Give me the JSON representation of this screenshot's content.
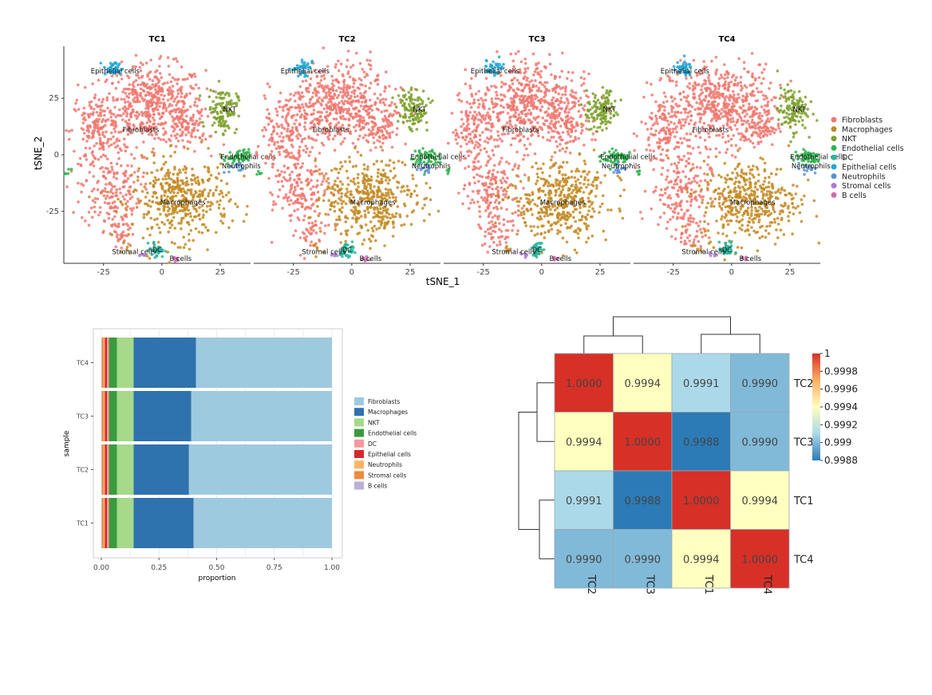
{
  "chart_data": [
    {
      "type": "scatter",
      "panels": [
        "TC1",
        "TC2",
        "TC3",
        "TC4"
      ],
      "xlabel": "tSNE_1",
      "ylabel": "tSNE_2",
      "xticks": [
        "-25",
        "0",
        "25"
      ],
      "yticks": [
        "25",
        "0",
        "-25"
      ],
      "xlim": [
        -42,
        38
      ],
      "ylim": [
        -48,
        48
      ],
      "legend_position": "right",
      "legend": [
        {
          "name": "Fibroblasts",
          "color": "#F07870"
        },
        {
          "name": "Macrophages",
          "color": "#C48A22"
        },
        {
          "name": "NKT",
          "color": "#7CA12D"
        },
        {
          "name": "Endothelial cells",
          "color": "#2DB34A"
        },
        {
          "name": "DC",
          "color": "#26B59A"
        },
        {
          "name": "Epithelial cells",
          "color": "#22A7D4"
        },
        {
          "name": "Neutrophils",
          "color": "#5A8FD0"
        },
        {
          "name": "Stromal cells",
          "color": "#B07AD0"
        },
        {
          "name": "B cells",
          "color": "#D068B0"
        }
      ],
      "cluster_labels": [
        {
          "text": "Epithelial cells",
          "x": -20,
          "y": 36
        },
        {
          "text": "Fibroblasts",
          "x": -9,
          "y": 10
        },
        {
          "text": "NKT",
          "x": 29,
          "y": 19
        },
        {
          "text": "Endothelial cells",
          "x": 37,
          "y": -2
        },
        {
          "text": "Neutrophils",
          "x": 34,
          "y": -6
        },
        {
          "text": "Macrophages",
          "x": 9,
          "y": -22
        },
        {
          "text": "Stromal cells",
          "x": -12,
          "y": -44
        },
        {
          "text": "DC",
          "x": -2,
          "y": -43
        },
        {
          "text": "B cells",
          "x": 8,
          "y": -47
        }
      ]
    },
    {
      "type": "bar",
      "stacked": true,
      "orientation": "horizontal",
      "xlabel": "proportion",
      "ylabel": "sample",
      "xticks": [
        "0.00",
        "0.25",
        "0.50",
        "0.75",
        "1.00"
      ],
      "xlim": [
        0,
        1
      ],
      "categories": [
        "TC4",
        "TC3",
        "TC2",
        "TC1"
      ],
      "legend_position": "right",
      "series": [
        {
          "name": "B cells",
          "color": "#BCB0D6",
          "values": [
            0.003,
            0.003,
            0.003,
            0.003
          ]
        },
        {
          "name": "Stromal cells",
          "color": "#F08A3C",
          "values": [
            0.007,
            0.007,
            0.007,
            0.007
          ]
        },
        {
          "name": "Neutrophils",
          "color": "#FDB462",
          "values": [
            0.005,
            0.005,
            0.005,
            0.005
          ]
        },
        {
          "name": "Epithelial cells",
          "color": "#D6292B",
          "values": [
            0.01,
            0.01,
            0.01,
            0.01
          ]
        },
        {
          "name": "DC",
          "color": "#F49A9A",
          "values": [
            0.008,
            0.008,
            0.008,
            0.008
          ]
        },
        {
          "name": "Endothelial cells",
          "color": "#3A9A3E",
          "values": [
            0.035,
            0.035,
            0.035,
            0.035
          ]
        },
        {
          "name": "NKT",
          "color": "#A6D98A",
          "values": [
            0.072,
            0.072,
            0.072,
            0.072
          ]
        },
        {
          "name": "Macrophages",
          "color": "#2E72AE",
          "values": [
            0.27,
            0.25,
            0.24,
            0.26
          ]
        },
        {
          "name": "Fibroblasts",
          "color": "#9ECAE0",
          "values": [
            0.59,
            0.61,
            0.62,
            0.6
          ]
        }
      ],
      "legend_order": [
        "Fibroblasts",
        "Macrophages",
        "NKT",
        "Endothelial cells",
        "DC",
        "Epithelial cells",
        "Neutrophils",
        "Stromal cells",
        "B cells"
      ]
    },
    {
      "type": "heatmap",
      "rows": [
        "TC2",
        "TC3",
        "TC1",
        "TC4"
      ],
      "columns": [
        "TC2",
        "TC3",
        "TC1",
        "TC4"
      ],
      "values": [
        [
          1.0,
          0.9994,
          0.9991,
          0.999
        ],
        [
          0.9994,
          1.0,
          0.9988,
          0.999
        ],
        [
          0.9991,
          0.9988,
          1.0,
          0.9994
        ],
        [
          0.999,
          0.999,
          0.9994,
          1.0
        ]
      ],
      "cell_labels": [
        [
          "1.0000",
          "0.9994",
          "0.9991",
          "0.9990"
        ],
        [
          "0.9994",
          "1.0000",
          "0.9988",
          "0.9990"
        ],
        [
          "0.9991",
          "0.9988",
          "1.0000",
          "0.9994"
        ],
        [
          "0.9990",
          "0.9990",
          "0.9994",
          "1.0000"
        ]
      ],
      "colorbar_ticks": [
        "1",
        "0.9998",
        "0.9996",
        "0.9994",
        "0.9992",
        "0.999",
        "0.9988"
      ],
      "color_range": [
        0.9988,
        1.0
      ],
      "dendrogram": true
    }
  ]
}
